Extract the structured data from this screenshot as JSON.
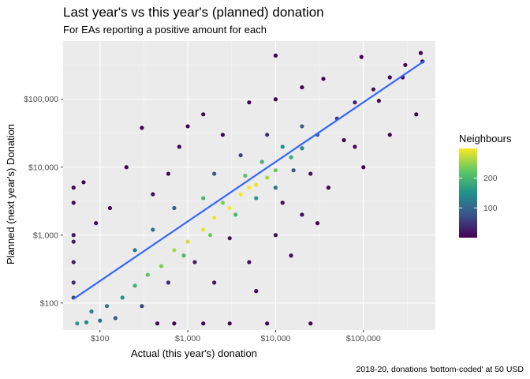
{
  "chart_data": {
    "type": "scatter",
    "title": "Last year's vs this year's (planned) donation",
    "subtitle": "For EAs reporting a positive amount for each",
    "xlabel": "Actual (this year's) donation",
    "ylabel": "Planned (next year's) Donation",
    "caption": "2018-20, donations 'bottom-coded' at 50 USD",
    "x_scale": "log10",
    "y_scale": "log10",
    "xlim": [
      38,
      660000
    ],
    "ylim": [
      40,
      720000
    ],
    "x_ticks": [
      {
        "value": 100,
        "label": "$100"
      },
      {
        "value": 1000,
        "label": "$1,000"
      },
      {
        "value": 10000,
        "label": "$10,000"
      },
      {
        "value": 100000,
        "label": "$100,000"
      }
    ],
    "y_ticks": [
      {
        "value": 100,
        "label": "$100"
      },
      {
        "value": 1000,
        "label": "$1,000"
      },
      {
        "value": 10000,
        "label": "$10,000"
      },
      {
        "value": 100000,
        "label": "$100,000"
      }
    ],
    "fit_line": {
      "name": "linear fit (log-log)",
      "x": [
        50,
        500000
      ],
      "y": [
        115,
        370000
      ],
      "color": "#3366ff"
    },
    "legend": {
      "title": "Neighbours",
      "min": 0,
      "max": 300,
      "ticks": [
        100,
        200
      ],
      "palette": [
        "#440154",
        "#3b528b",
        "#21918c",
        "#5ec962",
        "#fde725"
      ]
    },
    "points": [
      {
        "x": 180,
        "y": 120,
        "n": 150
      },
      {
        "x": 250,
        "y": 180,
        "n": 190
      },
      {
        "x": 350,
        "y": 260,
        "n": 220
      },
      {
        "x": 500,
        "y": 350,
        "n": 240
      },
      {
        "x": 700,
        "y": 600,
        "n": 260
      },
      {
        "x": 1000,
        "y": 800,
        "n": 280
      },
      {
        "x": 1500,
        "y": 1200,
        "n": 290
      },
      {
        "x": 2000,
        "y": 1800,
        "n": 295
      },
      {
        "x": 3000,
        "y": 2500,
        "n": 300
      },
      {
        "x": 4000,
        "y": 4000,
        "n": 300
      },
      {
        "x": 5000,
        "y": 5000,
        "n": 300
      },
      {
        "x": 6000,
        "y": 5500,
        "n": 290
      },
      {
        "x": 8000,
        "y": 7000,
        "n": 260
      },
      {
        "x": 10000,
        "y": 9000,
        "n": 230
      },
      {
        "x": 15000,
        "y": 14000,
        "n": 180
      },
      {
        "x": 20000,
        "y": 19000,
        "n": 140
      },
      {
        "x": 30000,
        "y": 30000,
        "n": 90
      },
      {
        "x": 50000,
        "y": 52000,
        "n": 50
      },
      {
        "x": 80000,
        "y": 90000,
        "n": 25
      },
      {
        "x": 130000,
        "y": 140000,
        "n": 12
      },
      {
        "x": 200000,
        "y": 210000,
        "n": 6
      },
      {
        "x": 300000,
        "y": 320000,
        "n": 3
      },
      {
        "x": 450000,
        "y": 480000,
        "n": 2
      },
      {
        "x": 470000,
        "y": 360000,
        "n": 2
      },
      {
        "x": 400000,
        "y": 60000,
        "n": 1
      },
      {
        "x": 95000,
        "y": 420000,
        "n": 1
      },
      {
        "x": 10000,
        "y": 440000,
        "n": 1
      },
      {
        "x": 280000,
        "y": 210000,
        "n": 2
      },
      {
        "x": 150000,
        "y": 95000,
        "n": 3
      },
      {
        "x": 60000,
        "y": 25000,
        "n": 4
      },
      {
        "x": 25000,
        "y": 8000,
        "n": 8
      },
      {
        "x": 12000,
        "y": 3000,
        "n": 12
      },
      {
        "x": 3000,
        "y": 900,
        "n": 18
      },
      {
        "x": 1200,
        "y": 400,
        "n": 30
      },
      {
        "x": 600,
        "y": 200,
        "n": 40
      },
      {
        "x": 300,
        "y": 90,
        "n": 60
      },
      {
        "x": 150,
        "y": 60,
        "n": 90
      },
      {
        "x": 100,
        "y": 55,
        "n": 110
      },
      {
        "x": 70,
        "y": 52,
        "n": 140
      },
      {
        "x": 55,
        "y": 50,
        "n": 160
      },
      {
        "x": 80,
        "y": 75,
        "n": 130
      },
      {
        "x": 120,
        "y": 90,
        "n": 120
      },
      {
        "x": 450,
        "y": 50,
        "n": 5
      },
      {
        "x": 700,
        "y": 50,
        "n": 3
      },
      {
        "x": 1500,
        "y": 50,
        "n": 2
      },
      {
        "x": 3000,
        "y": 50,
        "n": 1
      },
      {
        "x": 8000,
        "y": 50,
        "n": 1
      },
      {
        "x": 50,
        "y": 200,
        "n": 40
      },
      {
        "x": 50,
        "y": 400,
        "n": 30
      },
      {
        "x": 50,
        "y": 1000,
        "n": 20
      },
      {
        "x": 50,
        "y": 3000,
        "n": 10
      },
      {
        "x": 50,
        "y": 5000,
        "n": 6
      },
      {
        "x": 50,
        "y": 800,
        "n": 25
      },
      {
        "x": 50,
        "y": 120,
        "n": 60
      },
      {
        "x": 65,
        "y": 6000,
        "n": 3
      },
      {
        "x": 90,
        "y": 1500,
        "n": 10
      },
      {
        "x": 130,
        "y": 2500,
        "n": 6
      },
      {
        "x": 200,
        "y": 10000,
        "n": 3
      },
      {
        "x": 300,
        "y": 38000,
        "n": 1
      },
      {
        "x": 400,
        "y": 4000,
        "n": 10
      },
      {
        "x": 600,
        "y": 8000,
        "n": 6
      },
      {
        "x": 800,
        "y": 20000,
        "n": 3
      },
      {
        "x": 1000,
        "y": 40000,
        "n": 2
      },
      {
        "x": 1500,
        "y": 60000,
        "n": 2
      },
      {
        "x": 2500,
        "y": 30000,
        "n": 6
      },
      {
        "x": 5000,
        "y": 90000,
        "n": 4
      },
      {
        "x": 10000,
        "y": 100000,
        "n": 5
      },
      {
        "x": 20000,
        "y": 150000,
        "n": 3
      },
      {
        "x": 35000,
        "y": 200000,
        "n": 2
      },
      {
        "x": 2000,
        "y": 8000,
        "n": 80
      },
      {
        "x": 4000,
        "y": 15000,
        "n": 60
      },
      {
        "x": 8000,
        "y": 30000,
        "n": 40
      },
      {
        "x": 700,
        "y": 2500,
        "n": 90
      },
      {
        "x": 400,
        "y": 1200,
        "n": 110
      },
      {
        "x": 250,
        "y": 600,
        "n": 120
      },
      {
        "x": 1500,
        "y": 3500,
        "n": 200
      },
      {
        "x": 2500,
        "y": 3000,
        "n": 240
      },
      {
        "x": 4500,
        "y": 7500,
        "n": 220
      },
      {
        "x": 7000,
        "y": 12000,
        "n": 190
      },
      {
        "x": 12000,
        "y": 20000,
        "n": 150
      },
      {
        "x": 20000,
        "y": 40000,
        "n": 90
      },
      {
        "x": 900,
        "y": 500,
        "n": 200
      },
      {
        "x": 1800,
        "y": 1000,
        "n": 230
      },
      {
        "x": 3500,
        "y": 2000,
        "n": 200
      },
      {
        "x": 6000,
        "y": 3500,
        "n": 160
      },
      {
        "x": 10000,
        "y": 5000,
        "n": 120
      },
      {
        "x": 16000,
        "y": 9000,
        "n": 80
      },
      {
        "x": 2000,
        "y": 200,
        "n": 20
      },
      {
        "x": 5000,
        "y": 400,
        "n": 12
      },
      {
        "x": 10000,
        "y": 1000,
        "n": 15
      },
      {
        "x": 20000,
        "y": 2000,
        "n": 10
      },
      {
        "x": 40000,
        "y": 5000,
        "n": 6
      },
      {
        "x": 100000,
        "y": 10000,
        "n": 3
      },
      {
        "x": 200000,
        "y": 30000,
        "n": 2
      },
      {
        "x": 80000,
        "y": 20000,
        "n": 8
      },
      {
        "x": 30000,
        "y": 1500,
        "n": 2
      },
      {
        "x": 15000,
        "y": 500,
        "n": 3
      },
      {
        "x": 25000,
        "y": 50,
        "n": 1
      },
      {
        "x": 6000,
        "y": 150,
        "n": 4
      }
    ]
  }
}
